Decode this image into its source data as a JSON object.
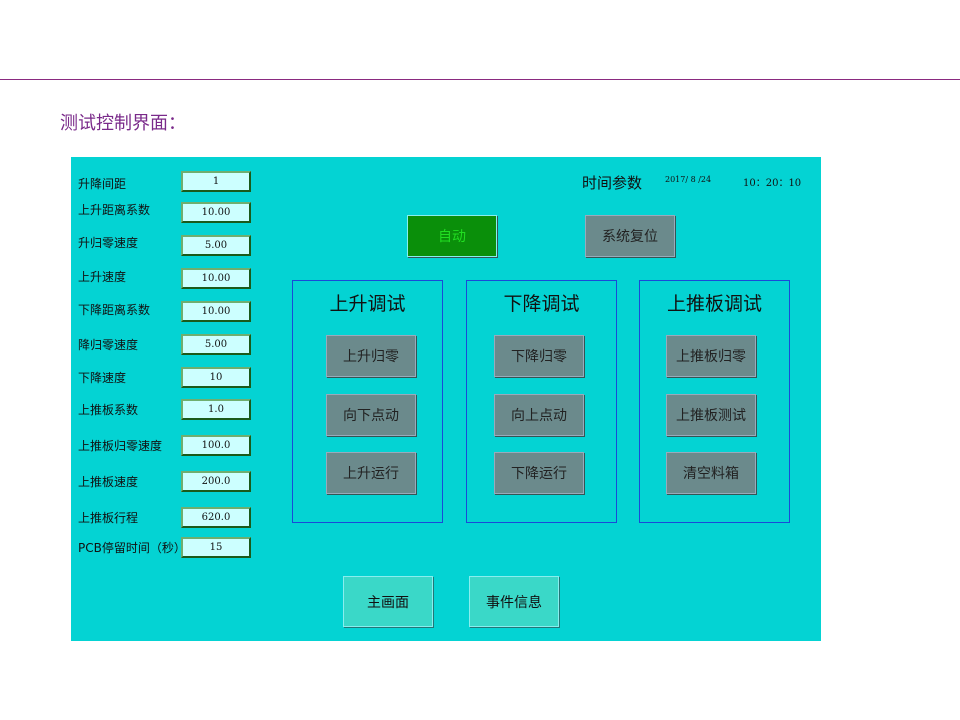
{
  "page_title": "测试控制界面：",
  "params": [
    {
      "label": "升降间距",
      "value": "1"
    },
    {
      "label": "上升距离系数",
      "value": "10.00"
    },
    {
      "label": "升归零速度",
      "value": "5.00"
    },
    {
      "label": "上升速度",
      "value": "10.00"
    },
    {
      "label": "下降距离系数",
      "value": "10.00"
    },
    {
      "label": "降归零速度",
      "value": "5.00"
    },
    {
      "label": "下降速度",
      "value": "10"
    },
    {
      "label": "上推板系数",
      "value": "1.0"
    },
    {
      "label": "上推板归零速度",
      "value": "100.0"
    },
    {
      "label": "上推板速度",
      "value": "200.0"
    },
    {
      "label": "上推板行程",
      "value": "620.0"
    },
    {
      "label": "PCB停留时间（秒）",
      "value": "15"
    }
  ],
  "time": {
    "label": "时间参数",
    "date": "2017/ 8 /24",
    "clock": "10：20：10"
  },
  "auto_label": "自动",
  "reset_label": "系统复位",
  "groups": [
    {
      "title": "上升调试",
      "buttons": [
        "上升归零",
        "向下点动",
        "上升运行"
      ]
    },
    {
      "title": "下降调试",
      "buttons": [
        "下降归零",
        "向上点动",
        "下降运行"
      ]
    },
    {
      "title": "上推板调试",
      "buttons": [
        "上推板归零",
        "上推板测试",
        "清空料箱"
      ]
    }
  ],
  "bottom": {
    "main": "主画面",
    "events": "事件信息"
  },
  "colors": {
    "panel": "#04d3d3",
    "auto": "#0a8f0a",
    "button": "#6b8a8c",
    "accent": "#7a2a8a"
  }
}
